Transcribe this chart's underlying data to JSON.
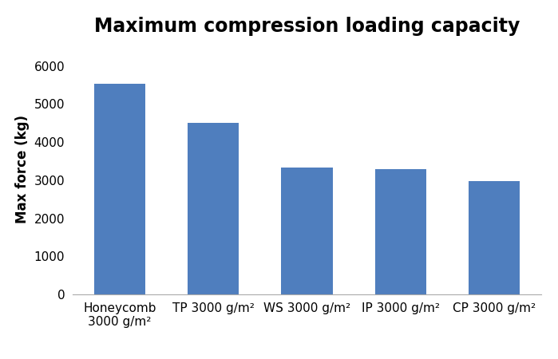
{
  "title": "Maximum compression loading capacity",
  "ylabel": "Max force (kg)",
  "categories": [
    "Honeycomb\n3000 g/m²",
    "TP 3000 g/m²",
    "WS 3000 g/m²",
    "IP 3000 g/m²",
    "CP 3000 g/m²"
  ],
  "values": [
    5530,
    4500,
    3340,
    3280,
    2970
  ],
  "bar_color": "#4F7EBE",
  "ylim": [
    0,
    6600
  ],
  "yticks": [
    0,
    1000,
    2000,
    3000,
    4000,
    5000,
    6000
  ],
  "title_fontsize": 17,
  "ylabel_fontsize": 12,
  "tick_fontsize": 11,
  "xtick_fontsize": 11,
  "bar_width": 0.55,
  "background_color": "#ffffff"
}
